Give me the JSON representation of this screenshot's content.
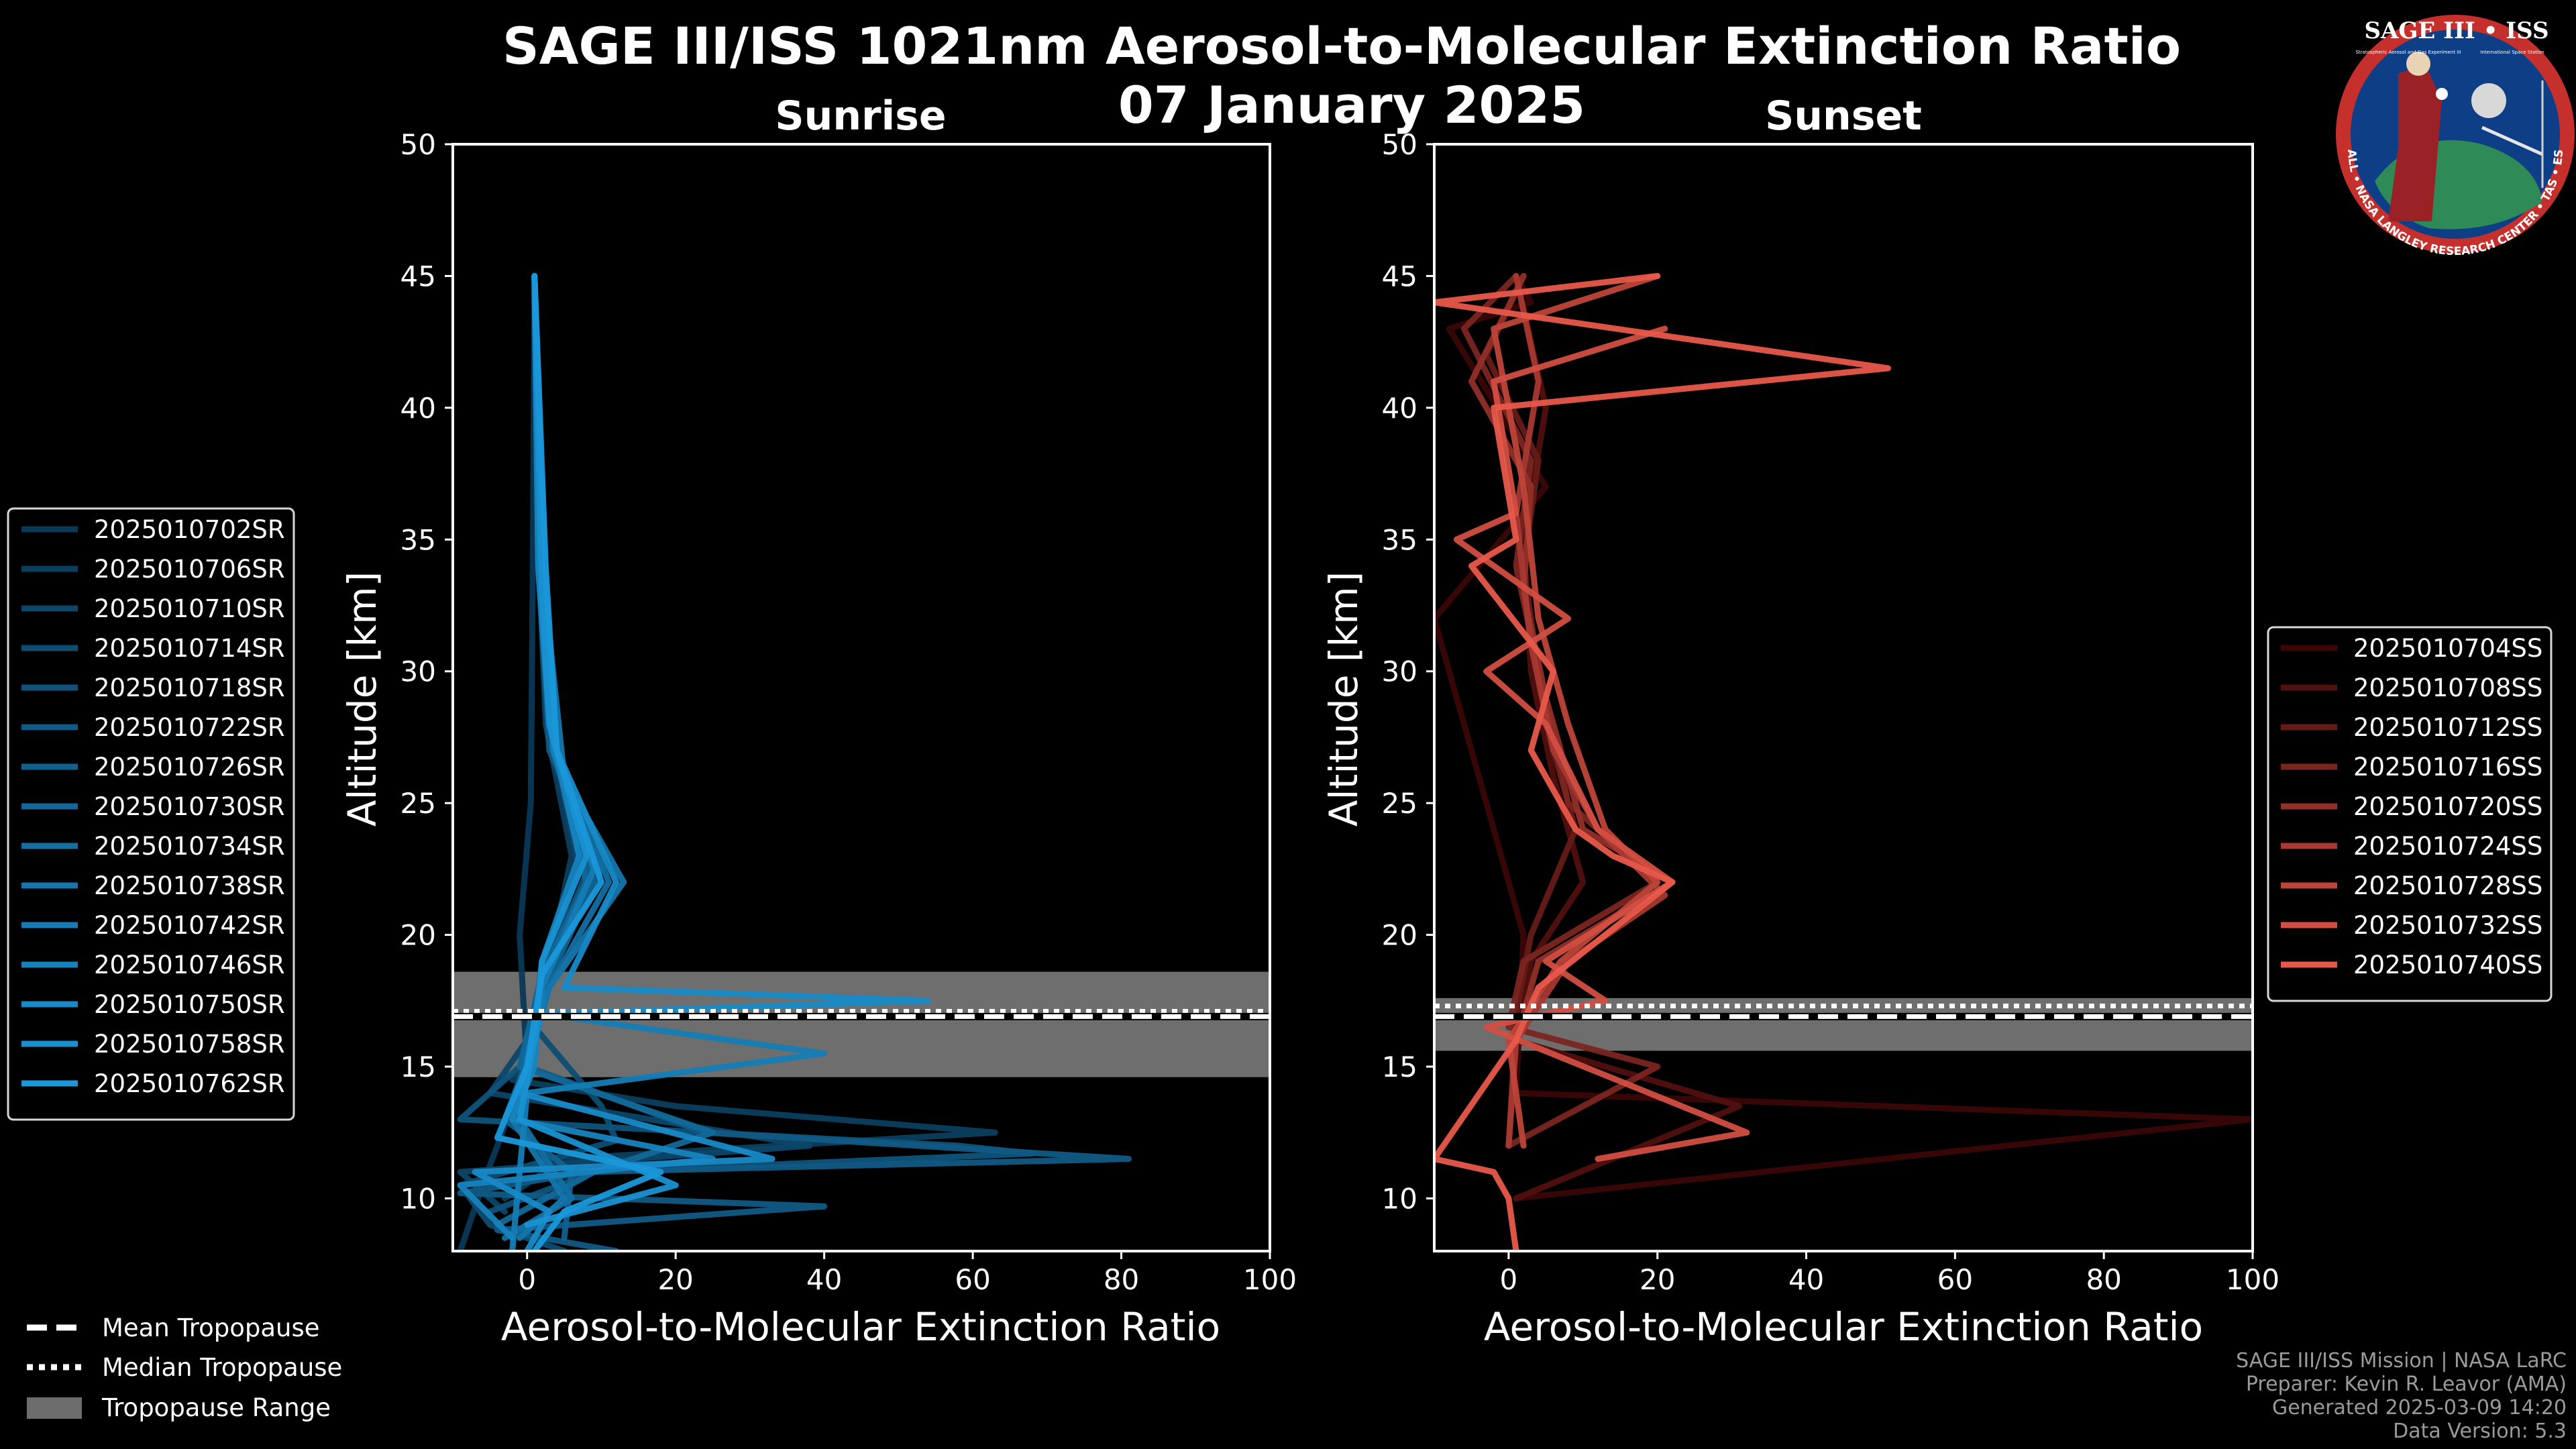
{
  "figure": {
    "title": "SAGE III/ISS 1021nm Aerosol-to-Molecular Extinction Ratio",
    "subtitle": "07 January 2025",
    "credits": [
      "SAGE III/ISS Mission | NASA LaRC",
      "Preparer: Kevin R. Leavor (AMA)",
      "Generated 2025-03-09 14:20",
      "Data Version: 5.3"
    ],
    "logo": {
      "title": "SAGE III • ISS",
      "ring_text": "BALL • NASA LANGLEY RESEARCH CENTER • TAS • ESA",
      "small_left": "Stratospheric Aerosol and Gas Experiment III",
      "small_right": "International Space Station"
    },
    "common_legend": [
      {
        "label": "Mean Tropopause",
        "style": "dashed"
      },
      {
        "label": "Median Tropopause",
        "style": "dotted"
      },
      {
        "label": "Tropopause Range",
        "style": "band"
      }
    ]
  },
  "chart_data": [
    {
      "type": "line",
      "panel": "Sunrise",
      "title": "Sunrise",
      "xlabel": "Aerosol-to-Molecular Extinction Ratio",
      "ylabel": "Altitude [km]",
      "xlim": [
        -10,
        100
      ],
      "ylim": [
        8,
        50
      ],
      "xticks": [
        0,
        20,
        40,
        60,
        80,
        100
      ],
      "yticks": [
        10,
        15,
        20,
        25,
        30,
        35,
        40,
        45,
        50
      ],
      "tropopause": {
        "mean": 16.9,
        "median": 17.1,
        "range": [
          14.6,
          18.6
        ]
      },
      "colors": {
        "dark": "#0a3856",
        "light": "#1a98da"
      },
      "legend_position": "left",
      "series": [
        {
          "name": "2025010702SR",
          "x": [
            1,
            0.8,
            0.5,
            -1,
            0,
            -6,
            -9
          ],
          "y": [
            45,
            35,
            25,
            20,
            15,
            10.5,
            8
          ]
        },
        {
          "name": "2025010706SR",
          "x": [
            1,
            1.5,
            2.5,
            6,
            3,
            1,
            -2,
            20,
            63,
            5,
            -3
          ],
          "y": [
            45,
            35,
            28,
            23,
            19,
            16,
            14.5,
            13.5,
            12.5,
            11.5,
            10
          ]
        },
        {
          "name": "2025010710SR",
          "x": [
            1,
            1.8,
            3,
            7,
            2,
            0,
            -5,
            38,
            -9,
            -3
          ],
          "y": [
            45,
            35,
            28,
            22.5,
            18.5,
            16,
            14,
            12,
            11,
            9.5
          ]
        },
        {
          "name": "2025010714SR",
          "x": [
            1,
            2,
            3.5,
            8,
            2,
            1,
            10,
            12,
            -9,
            -5,
            5
          ],
          "y": [
            45,
            34,
            27,
            22,
            19,
            16.5,
            13.5,
            12.2,
            10.5,
            9,
            8
          ]
        },
        {
          "name": "2025010718SR",
          "x": [
            1,
            2,
            4,
            9,
            3,
            -1,
            -9,
            58,
            68,
            9,
            -5
          ],
          "y": [
            45,
            34,
            27,
            23,
            19,
            15,
            13,
            12,
            11.7,
            11,
            9.5
          ]
        },
        {
          "name": "2025010722SR",
          "x": [
            1,
            1.5,
            3,
            10,
            2,
            0,
            24,
            81,
            8,
            -9,
            40,
            -4,
            12
          ],
          "y": [
            45,
            34,
            27,
            22.5,
            18,
            15,
            12.5,
            11.5,
            11,
            10.2,
            9.7,
            8.8,
            8
          ]
        },
        {
          "name": "2025010726SR",
          "x": [
            1,
            2,
            3.5,
            9,
            2.5,
            1,
            -3,
            6,
            5
          ],
          "y": [
            45,
            33,
            27,
            22,
            18,
            16,
            13,
            11,
            8.5
          ]
        },
        {
          "name": "2025010730SR",
          "x": [
            1,
            1.8,
            3,
            8,
            2,
            -1,
            25,
            9,
            -4
          ],
          "y": [
            45,
            34,
            28,
            22,
            18.5,
            15,
            12.5,
            11,
            9
          ]
        },
        {
          "name": "2025010734SR",
          "x": [
            1,
            2.5,
            4,
            11,
            3,
            0,
            -1,
            6,
            -3
          ],
          "y": [
            45,
            33,
            27,
            22,
            18,
            15.5,
            13,
            10,
            8.5
          ]
        },
        {
          "name": "2025010738SR",
          "x": [
            1,
            2,
            5,
            13,
            3,
            1,
            -2,
            5,
            -1
          ],
          "y": [
            45,
            34,
            26,
            22,
            18,
            16,
            13,
            10,
            8.5
          ]
        },
        {
          "name": "2025010742SR",
          "x": [
            1,
            2,
            3.5,
            9,
            2,
            2,
            40,
            0,
            -2
          ],
          "y": [
            45,
            34,
            27,
            22.5,
            18,
            17,
            15.5,
            14,
            8
          ]
        },
        {
          "name": "2025010746SR",
          "x": [
            1,
            1.5,
            3,
            7,
            2,
            1,
            -2,
            25,
            -9,
            -2
          ],
          "y": [
            45,
            34,
            28,
            23,
            19,
            15,
            13,
            11.5,
            10.5,
            8.5
          ]
        },
        {
          "name": "2025010750SR",
          "x": [
            1,
            2,
            4,
            12,
            5,
            54,
            2,
            -1,
            33,
            -7,
            3,
            0
          ],
          "y": [
            45,
            34,
            27,
            22,
            18,
            17.5,
            17,
            14,
            11.5,
            11,
            9.5,
            8
          ]
        },
        {
          "name": "2025010758SR",
          "x": [
            1,
            2,
            3,
            8,
            2,
            1,
            -1,
            20,
            0
          ],
          "y": [
            45,
            33,
            28,
            23,
            19,
            16,
            13,
            10.5,
            9
          ]
        },
        {
          "name": "2025010762SR",
          "x": [
            1,
            2.5,
            4,
            10,
            2,
            0,
            -4,
            18,
            5,
            1
          ],
          "y": [
            45,
            34,
            27,
            22,
            18.5,
            15,
            12.3,
            11,
            9.5,
            8
          ]
        }
      ]
    },
    {
      "type": "line",
      "panel": "Sunset",
      "title": "Sunset",
      "xlabel": "Aerosol-to-Molecular Extinction Ratio",
      "ylabel": "Altitude [km]",
      "xlim": [
        -10,
        100
      ],
      "ylim": [
        8,
        50
      ],
      "xticks": [
        0,
        20,
        40,
        60,
        80,
        100
      ],
      "yticks": [
        10,
        15,
        20,
        25,
        30,
        35,
        40,
        45,
        50
      ],
      "tropopause": {
        "mean": 16.9,
        "median": 17.3,
        "range": [
          15.6,
          17.6
        ]
      },
      "colors": {
        "dark": "#3a0606",
        "light": "#e8584a"
      },
      "legend_position": "right",
      "series": [
        {
          "name": "2025010704SS",
          "x": [
            1,
            3,
            -8,
            5,
            -10,
            2,
            1,
            100,
            1
          ],
          "y": [
            45,
            44,
            43,
            37,
            32,
            20,
            14,
            13,
            10
          ]
        },
        {
          "name": "2025010708SS",
          "x": [
            1,
            5,
            2,
            3,
            6,
            10,
            3,
            1,
            31,
            1
          ],
          "y": [
            45,
            40,
            35,
            30,
            26,
            22,
            19,
            16,
            13.5,
            10
          ]
        },
        {
          "name": "2025010712SS",
          "x": [
            2,
            -3,
            4,
            2,
            5,
            9,
            3,
            1,
            0
          ],
          "y": [
            45,
            42,
            38,
            34,
            28,
            24,
            20,
            17,
            12
          ]
        },
        {
          "name": "2025010716SS",
          "x": [
            1,
            -6,
            3,
            1,
            4,
            8,
            20,
            2,
            0,
            20,
            0
          ],
          "y": [
            45,
            43,
            38,
            34,
            30,
            25,
            22,
            19,
            16.5,
            15,
            12
          ]
        },
        {
          "name": "2025010720SS",
          "x": [
            2,
            -5,
            3,
            2,
            5,
            10,
            22,
            4,
            1,
            0
          ],
          "y": [
            45,
            41,
            37,
            33,
            29,
            24,
            22,
            19,
            16,
            12
          ]
        },
        {
          "name": "2025010724SS",
          "x": [
            1,
            4,
            1,
            3,
            6,
            12,
            21,
            8,
            1,
            0
          ],
          "y": [
            45,
            41,
            36,
            31,
            27,
            24,
            21.5,
            19,
            16,
            12
          ]
        },
        {
          "name": "2025010728SS",
          "x": [
            20,
            -2,
            2,
            4,
            8,
            13,
            20,
            7,
            0,
            2
          ],
          "y": [
            45,
            43,
            37,
            32,
            28,
            24,
            22,
            19,
            16,
            12
          ]
        },
        {
          "name": "2025010732SS",
          "x": [
            21,
            -2,
            1,
            -7,
            8,
            -3,
            5,
            12,
            22,
            5,
            13,
            -3,
            32,
            12
          ],
          "y": [
            43,
            41,
            36,
            35,
            32,
            30,
            28,
            24,
            22,
            19,
            17.5,
            16.5,
            12.5,
            11.5
          ]
        },
        {
          "name": "2025010740SS",
          "x": [
            20,
            -10,
            51,
            -2,
            1,
            -5,
            6,
            3,
            9,
            14,
            22,
            4,
            1,
            -10,
            -2,
            0,
            1
          ],
          "y": [
            45,
            44,
            41.5,
            40,
            35,
            34,
            30,
            27,
            24,
            23,
            22,
            18,
            16,
            11.5,
            11,
            10,
            8
          ]
        }
      ]
    }
  ]
}
